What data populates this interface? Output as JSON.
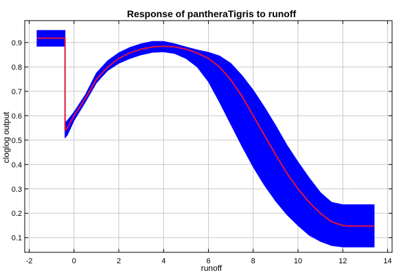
{
  "chart_data": {
    "type": "line",
    "title": "Response of pantheraTigris to runoff",
    "xlabel": "runoff",
    "ylabel": "cloglog output",
    "xlim": [
      -2.2,
      14.2
    ],
    "ylim": [
      0.04,
      0.99
    ],
    "xticks": [
      -2,
      0,
      2,
      4,
      6,
      8,
      10,
      12,
      14
    ],
    "yticks": [
      0.1,
      0.2,
      0.3,
      0.4,
      0.5,
      0.6,
      0.7,
      0.8,
      0.9
    ],
    "grid": true,
    "colors": {
      "band": "#0000ff",
      "line": "#e0143c"
    },
    "series": [
      {
        "role": "mean",
        "x": [
          -1.65,
          -0.4,
          -0.4,
          -0.3,
          0,
          0.5,
          1,
          1.5,
          2,
          2.5,
          3,
          3.5,
          4,
          4.5,
          5,
          5.5,
          6,
          6.5,
          7,
          7.5,
          8,
          8.5,
          9,
          9.5,
          10,
          10.5,
          11,
          11.5,
          12,
          12.2,
          13.4
        ],
        "y": [
          0.918,
          0.918,
          0.54,
          0.55,
          0.6,
          0.67,
          0.75,
          0.8,
          0.835,
          0.858,
          0.873,
          0.882,
          0.885,
          0.882,
          0.873,
          0.857,
          0.835,
          0.8,
          0.747,
          0.68,
          0.6,
          0.52,
          0.44,
          0.365,
          0.3,
          0.245,
          0.2,
          0.165,
          0.15,
          0.148,
          0.148
        ]
      },
      {
        "role": "band-upper",
        "x": [
          -1.65,
          -0.4,
          -0.4,
          -0.3,
          0,
          0.5,
          1,
          1.5,
          2,
          2.5,
          3,
          3.5,
          4,
          4.5,
          5,
          5.5,
          6,
          6.5,
          7,
          7.5,
          8,
          8.5,
          9,
          9.5,
          10,
          10.5,
          11,
          11.5,
          12,
          12.2,
          13.4
        ],
        "y": [
          0.95,
          0.95,
          0.57,
          0.58,
          0.615,
          0.685,
          0.775,
          0.825,
          0.858,
          0.88,
          0.895,
          0.905,
          0.905,
          0.895,
          0.882,
          0.87,
          0.86,
          0.845,
          0.815,
          0.765,
          0.705,
          0.635,
          0.56,
          0.48,
          0.41,
          0.345,
          0.285,
          0.245,
          0.235,
          0.235,
          0.235
        ]
      },
      {
        "role": "band-lower",
        "x": [
          -1.65,
          -0.4,
          -0.4,
          -0.3,
          0,
          0.5,
          1,
          1.5,
          2,
          2.5,
          3,
          3.5,
          4,
          4.5,
          5,
          5.5,
          6,
          6.5,
          7,
          7.5,
          8,
          8.5,
          9,
          9.5,
          10,
          10.5,
          11,
          11.5,
          12,
          12.2,
          13.4
        ],
        "y": [
          0.885,
          0.885,
          0.51,
          0.52,
          0.58,
          0.655,
          0.735,
          0.785,
          0.815,
          0.835,
          0.85,
          0.86,
          0.862,
          0.855,
          0.835,
          0.8,
          0.74,
          0.655,
          0.565,
          0.475,
          0.39,
          0.315,
          0.25,
          0.195,
          0.15,
          0.11,
          0.085,
          0.068,
          0.062,
          0.062,
          0.062
        ]
      }
    ]
  }
}
